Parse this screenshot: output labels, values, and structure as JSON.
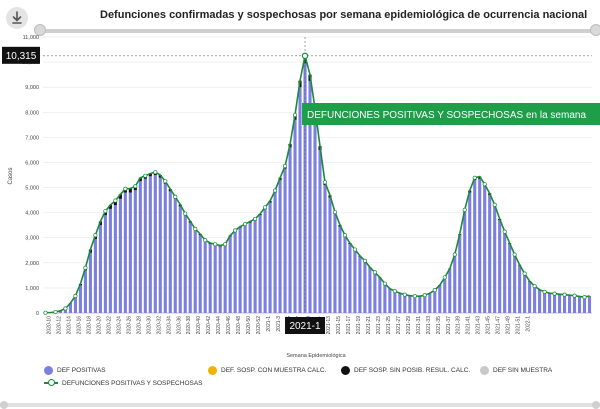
{
  "colors": {
    "positivas": "#7b7fe0",
    "sosp_muestra": "#f0b400",
    "sosp_sin_posib": "#111111",
    "sin_muestra": "#c8c8c8",
    "line": "#1b8a3a",
    "banner": "#1f9e4a",
    "tooltip": "#111111"
  },
  "chart_data": {
    "type": "bar",
    "title": "Defunciones confirmadas y sospechosas por semana epidemiológica de ocurrencia nacional",
    "xlabel": "Semana Epidemiológica",
    "ylabel": "Casos",
    "ylim": [
      0,
      11000
    ],
    "yticks": [
      "0",
      "1,000",
      "2,000",
      "3,000",
      "4,000",
      "5,000",
      "6,000",
      "7,000",
      "8,000",
      "9,000",
      "10,000",
      "11,000"
    ],
    "grid": true,
    "legend_position": "bottom",
    "x_tick_labels": [
      "2020-10",
      "2020-12",
      "2020-14",
      "2020-16",
      "2020-18",
      "2020-20",
      "2020-22",
      "2020-24",
      "2020-26",
      "2020-28",
      "2020-30",
      "2020-32",
      "2020-34",
      "2020-36",
      "2020-38",
      "2020-40",
      "2020-42",
      "2020-44",
      "2020-46",
      "2020-48",
      "2020-50",
      "2020-52",
      "2021-1",
      "2021-3",
      "2021-5",
      "2021-7",
      "2021-9",
      "2021-11",
      "2021-13",
      "2021-15",
      "2021-17",
      "2021-19",
      "2021-21",
      "2021-23",
      "2021-25",
      "2021-27",
      "2021-29",
      "2021-31",
      "2021-33",
      "2021-35",
      "2021-37",
      "2021-39",
      "2021-41",
      "2021-43",
      "2021-45",
      "2021-47",
      "2021-49",
      "2021-51",
      "2022-1"
    ],
    "series": [
      {
        "name": "DEF POSITIVAS",
        "values": [
          10,
          20,
          40,
          90,
          180,
          400,
          650,
          1100,
          1700,
          2400,
          2950,
          3500,
          3900,
          4150,
          4300,
          4550,
          4800,
          4800,
          4900,
          5250,
          5350,
          5450,
          5500,
          5400,
          5150,
          4850,
          4550,
          4250,
          3900,
          3600,
          3300,
          3100,
          2850,
          2750,
          2700,
          2650,
          2700,
          3050,
          3250,
          3400,
          3500,
          3600,
          3700,
          3900,
          4150,
          4400,
          4800,
          5300,
          5750,
          6600,
          7700,
          9000,
          9950,
          9250,
          7950,
          6500,
          5100,
          4600,
          3950,
          3450,
          3050,
          2750,
          2500,
          2250,
          2050,
          1800,
          1600,
          1400,
          1150,
          950,
          850,
          780,
          720,
          680,
          660,
          660,
          700,
          780,
          900,
          1100,
          1400,
          1750,
          2300,
          3100,
          4050,
          4800,
          5300,
          5350,
          5050,
          4700,
          4250,
          3700,
          3200,
          2750,
          2300,
          1900,
          1550,
          1250,
          1050,
          920,
          830,
          780,
          760,
          740,
          720,
          700,
          680,
          650,
          620,
          650
        ]
      },
      {
        "name": "DEF. SOSP. CON MUESTRA CALC.",
        "values": [
          0,
          0,
          0,
          0,
          0,
          0,
          0,
          0,
          0,
          0,
          0,
          0,
          0,
          0,
          0,
          0,
          0,
          0,
          0,
          0,
          0,
          0,
          0,
          0,
          0,
          0,
          0,
          0,
          0,
          0,
          0,
          0,
          0,
          0,
          0,
          0,
          0,
          0,
          0,
          0,
          0,
          0,
          0,
          0,
          0,
          0,
          0,
          0,
          0,
          0,
          0,
          0,
          0,
          0,
          0,
          0,
          0,
          0,
          0,
          0,
          0,
          0,
          0,
          0,
          0,
          0,
          0,
          0,
          0,
          0,
          0,
          0,
          0,
          0,
          0,
          0,
          0,
          0,
          0,
          0,
          0,
          0,
          0,
          0,
          0,
          0,
          0,
          0,
          0,
          0,
          0,
          0,
          0,
          0,
          0,
          0,
          0,
          0,
          0,
          0,
          0,
          0,
          0,
          0,
          0,
          0,
          0,
          0,
          0,
          20
        ]
      },
      {
        "name": "DEF SOSP. SIN POSIB. RESUL. CALC.",
        "values": [
          0,
          0,
          0,
          0,
          0,
          0,
          30,
          60,
          100,
          130,
          150,
          150,
          160,
          160,
          180,
          180,
          150,
          160,
          150,
          140,
          120,
          110,
          110,
          100,
          100,
          90,
          80,
          70,
          60,
          60,
          50,
          50,
          50,
          40,
          40,
          40,
          40,
          40,
          40,
          40,
          40,
          50,
          50,
          50,
          60,
          70,
          80,
          90,
          110,
          140,
          190,
          260,
          300,
          250,
          200,
          150,
          110,
          90,
          70,
          60,
          50,
          40,
          30,
          30,
          30,
          20,
          20,
          20,
          20,
          20,
          20,
          10,
          10,
          10,
          10,
          10,
          10,
          10,
          10,
          10,
          20,
          20,
          30,
          40,
          60,
          80,
          90,
          90,
          80,
          70,
          60,
          50,
          40,
          30,
          30,
          20,
          20,
          20,
          20,
          10,
          10,
          10,
          10,
          10,
          10,
          10,
          10,
          10,
          10,
          10
        ]
      },
      {
        "name": "DEF SIN MUESTRA",
        "values": [
          0,
          0,
          0,
          0,
          0,
          0,
          0,
          0,
          0,
          0,
          0,
          0,
          0,
          0,
          0,
          0,
          0,
          0,
          0,
          0,
          0,
          0,
          0,
          0,
          0,
          0,
          0,
          0,
          0,
          0,
          0,
          0,
          0,
          0,
          0,
          0,
          0,
          0,
          0,
          0,
          0,
          0,
          0,
          0,
          0,
          0,
          0,
          0,
          0,
          0,
          0,
          0,
          0,
          0,
          0,
          0,
          0,
          0,
          0,
          0,
          0,
          0,
          0,
          0,
          0,
          0,
          0,
          0,
          0,
          0,
          0,
          0,
          0,
          0,
          0,
          0,
          0,
          0,
          0,
          0,
          0,
          0,
          0,
          0,
          0,
          0,
          0,
          0,
          0,
          0,
          0,
          0,
          0,
          0,
          0,
          0,
          0,
          0,
          0,
          0,
          0,
          0,
          0,
          0,
          0,
          0,
          0,
          0,
          0,
          0
        ]
      },
      {
        "name": "DEFUNCIONES POSITIVAS Y SOSPECHOSAS",
        "values": [
          10,
          20,
          40,
          90,
          180,
          400,
          680,
          1160,
          1800,
          2530,
          3100,
          3650,
          4060,
          4310,
          4480,
          4730,
          4950,
          4960,
          5050,
          5390,
          5470,
          5560,
          5610,
          5500,
          5250,
          4940,
          4630,
          4320,
          3960,
          3660,
          3350,
          3150,
          2900,
          2790,
          2740,
          2690,
          2740,
          3090,
          3290,
          3440,
          3540,
          3650,
          3750,
          3950,
          4210,
          4470,
          4880,
          5390,
          5860,
          6740,
          7890,
          9260,
          10250,
          9500,
          8150,
          6650,
          5210,
          4690,
          4020,
          3510,
          3100,
          2790,
          2530,
          2280,
          2080,
          1820,
          1620,
          1420,
          1170,
          970,
          870,
          790,
          730,
          690,
          670,
          670,
          710,
          790,
          910,
          1110,
          1420,
          1770,
          2330,
          3140,
          4110,
          4880,
          5390,
          5440,
          5130,
          4770,
          4310,
          3750,
          3240,
          2780,
          2330,
          1920,
          1570,
          1270,
          1070,
          930,
          840,
          790,
          770,
          750,
          730,
          710,
          690,
          660,
          630,
          680
        ]
      }
    ],
    "tooltip_y": "10,315",
    "tooltip_x": "2021-1",
    "banner": "DEFUNCIONES POSITIVAS Y SOSPECHOSAS en la semana"
  }
}
